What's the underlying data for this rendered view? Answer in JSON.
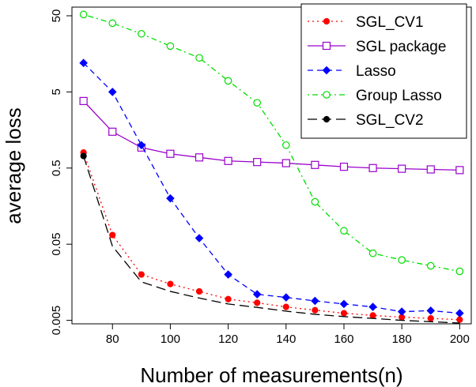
{
  "chart_data": {
    "type": "line",
    "title": "",
    "xlabel": "Number of measurements(n)",
    "ylabel": "average loss",
    "y_scale": "log",
    "xlim": [
      66,
      204
    ],
    "ylim": [
      0.0045,
      65
    ],
    "x_ticks": [
      80,
      100,
      120,
      140,
      160,
      180,
      200
    ],
    "y_ticks": [
      0.005,
      0.05,
      0.5,
      5,
      50
    ],
    "y_tick_labels": [
      "0.005",
      "0.05",
      "0.5",
      "5",
      "50"
    ],
    "x": [
      70,
      80,
      90,
      100,
      110,
      120,
      130,
      140,
      150,
      160,
      170,
      180,
      190,
      200
    ],
    "legend_position": "top-right",
    "series": [
      {
        "name": "SGL_CV1",
        "color": "#ff0000",
        "marker": "filled-circle",
        "line": "dotted",
        "values": [
          0.8,
          0.066,
          0.02,
          0.015,
          0.012,
          0.0095,
          0.0085,
          0.0075,
          0.0068,
          0.0062,
          0.0058,
          0.0055,
          0.0053,
          0.0051
        ]
      },
      {
        "name": "SGL package",
        "color": "#9900cc",
        "marker": "open-square",
        "line": "solid",
        "values": [
          3.8,
          1.5,
          0.93,
          0.77,
          0.69,
          0.62,
          0.6,
          0.58,
          0.55,
          0.52,
          0.5,
          0.49,
          0.48,
          0.47
        ]
      },
      {
        "name": "Lasso",
        "color": "#0000ff",
        "marker": "filled-diamond",
        "line": "dashed",
        "values": [
          12,
          5.0,
          1.0,
          0.2,
          0.06,
          0.02,
          0.011,
          0.01,
          0.009,
          0.0082,
          0.0075,
          0.0065,
          0.0067,
          0.0062
        ]
      },
      {
        "name": "Group Lasso",
        "color": "#00dd00",
        "marker": "open-circle",
        "line": "dotdash",
        "values": [
          52,
          40,
          29,
          20,
          14,
          7.0,
          3.6,
          1.0,
          0.18,
          0.075,
          0.038,
          0.031,
          0.026,
          0.022
        ]
      },
      {
        "name": "SGL_CV2",
        "color": "#000000",
        "marker": "filled-circle",
        "line": "longdash",
        "values": [
          0.72,
          0.047,
          0.016,
          0.012,
          0.0098,
          0.0082,
          0.0074,
          0.0066,
          0.006,
          0.0056,
          0.0053,
          0.005,
          0.0048,
          0.0046
        ]
      }
    ]
  }
}
